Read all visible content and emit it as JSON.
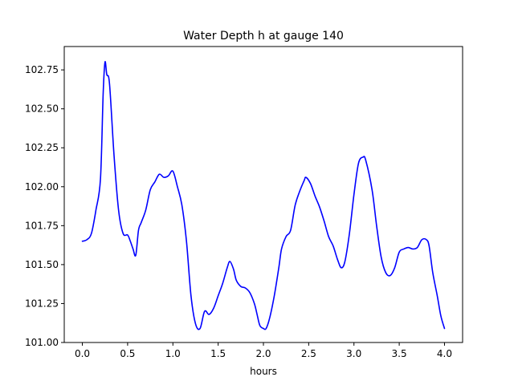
{
  "chart_data": {
    "type": "line",
    "title": "Water Depth h at gauge 140",
    "xlabel": "hours",
    "ylabel": "",
    "xlim": [
      -0.2,
      4.2
    ],
    "ylim": [
      101.0,
      102.9
    ],
    "x_ticks": [
      0.0,
      0.5,
      1.0,
      1.5,
      2.0,
      2.5,
      3.0,
      3.5,
      4.0
    ],
    "x_tick_labels": [
      "0.0",
      "0.5",
      "1.0",
      "1.5",
      "2.0",
      "2.5",
      "3.0",
      "3.5",
      "4.0"
    ],
    "y_ticks": [
      101.0,
      101.25,
      101.5,
      101.75,
      102.0,
      102.25,
      102.5,
      102.75
    ],
    "y_tick_labels": [
      "101.00",
      "101.25",
      "101.50",
      "101.75",
      "102.00",
      "102.25",
      "102.50",
      "102.75"
    ],
    "grid": false,
    "series": [
      {
        "color": "#0000ff",
        "points": [
          [
            0.0,
            101.65
          ],
          [
            0.05,
            101.66
          ],
          [
            0.1,
            101.7
          ],
          [
            0.15,
            101.85
          ],
          [
            0.2,
            102.05
          ],
          [
            0.23,
            102.6
          ],
          [
            0.25,
            102.8
          ],
          [
            0.27,
            102.72
          ],
          [
            0.3,
            102.66
          ],
          [
            0.35,
            102.2
          ],
          [
            0.4,
            101.85
          ],
          [
            0.45,
            101.7
          ],
          [
            0.5,
            101.69
          ],
          [
            0.53,
            101.65
          ],
          [
            0.56,
            101.6
          ],
          [
            0.59,
            101.56
          ],
          [
            0.62,
            101.72
          ],
          [
            0.65,
            101.77
          ],
          [
            0.7,
            101.85
          ],
          [
            0.75,
            101.98
          ],
          [
            0.8,
            102.03
          ],
          [
            0.85,
            102.08
          ],
          [
            0.9,
            102.06
          ],
          [
            0.95,
            102.07
          ],
          [
            1.0,
            102.1
          ],
          [
            1.05,
            102.0
          ],
          [
            1.1,
            101.88
          ],
          [
            1.15,
            101.65
          ],
          [
            1.2,
            101.3
          ],
          [
            1.25,
            101.12
          ],
          [
            1.3,
            101.09
          ],
          [
            1.35,
            101.2
          ],
          [
            1.4,
            101.18
          ],
          [
            1.45,
            101.22
          ],
          [
            1.5,
            101.3
          ],
          [
            1.55,
            101.38
          ],
          [
            1.6,
            101.48
          ],
          [
            1.63,
            101.52
          ],
          [
            1.67,
            101.47
          ],
          [
            1.7,
            101.4
          ],
          [
            1.75,
            101.36
          ],
          [
            1.8,
            101.35
          ],
          [
            1.85,
            101.32
          ],
          [
            1.9,
            101.25
          ],
          [
            1.93,
            101.18
          ],
          [
            1.96,
            101.11
          ],
          [
            2.0,
            101.09
          ],
          [
            2.03,
            101.09
          ],
          [
            2.07,
            101.16
          ],
          [
            2.12,
            101.3
          ],
          [
            2.17,
            101.48
          ],
          [
            2.2,
            101.6
          ],
          [
            2.25,
            101.68
          ],
          [
            2.3,
            101.72
          ],
          [
            2.35,
            101.88
          ],
          [
            2.4,
            101.97
          ],
          [
            2.45,
            102.04
          ],
          [
            2.47,
            102.06
          ],
          [
            2.52,
            102.02
          ],
          [
            2.57,
            101.94
          ],
          [
            2.62,
            101.87
          ],
          [
            2.67,
            101.78
          ],
          [
            2.72,
            101.68
          ],
          [
            2.77,
            101.62
          ],
          [
            2.82,
            101.53
          ],
          [
            2.86,
            101.48
          ],
          [
            2.9,
            101.52
          ],
          [
            2.95,
            101.7
          ],
          [
            3.0,
            101.95
          ],
          [
            3.05,
            102.15
          ],
          [
            3.1,
            102.19
          ],
          [
            3.13,
            102.17
          ],
          [
            3.2,
            101.98
          ],
          [
            3.25,
            101.75
          ],
          [
            3.3,
            101.55
          ],
          [
            3.35,
            101.45
          ],
          [
            3.4,
            101.43
          ],
          [
            3.45,
            101.48
          ],
          [
            3.5,
            101.58
          ],
          [
            3.55,
            101.6
          ],
          [
            3.6,
            101.61
          ],
          [
            3.65,
            101.6
          ],
          [
            3.7,
            101.61
          ],
          [
            3.75,
            101.66
          ],
          [
            3.8,
            101.66
          ],
          [
            3.83,
            101.62
          ],
          [
            3.87,
            101.45
          ],
          [
            3.92,
            101.3
          ],
          [
            3.96,
            101.17
          ],
          [
            4.0,
            101.09
          ]
        ]
      }
    ]
  }
}
